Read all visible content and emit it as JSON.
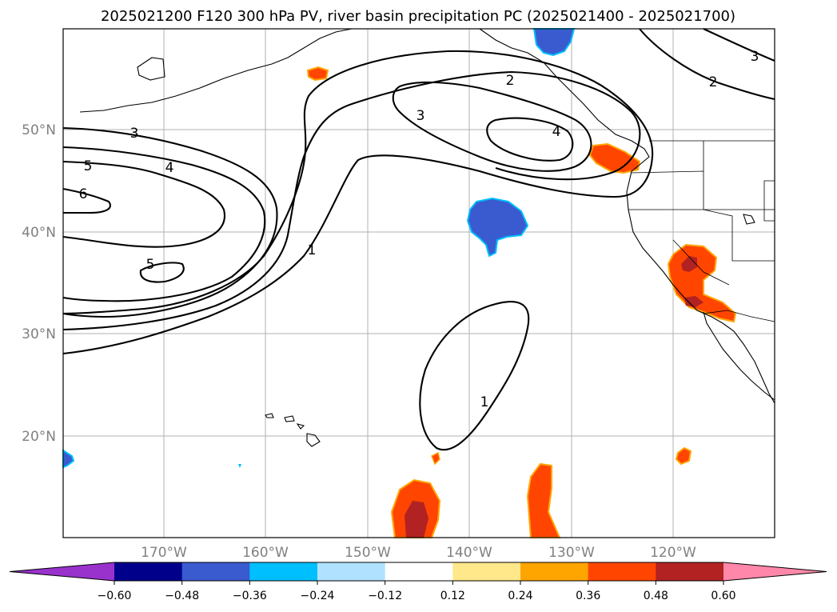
{
  "title": "2025021200 F120 300 hPa PV, river basin precipitation PC (2025021400 - 2025021700)",
  "map": {
    "lon_labels": [
      "170°W",
      "160°W",
      "150°W",
      "140°W",
      "130°W",
      "120°W"
    ],
    "lat_labels": [
      "50°N",
      "40°N",
      "30°N",
      "20°N"
    ],
    "contour_labels": [
      "2",
      "2",
      "3",
      "3",
      "3",
      "4",
      "4",
      "5",
      "5",
      "6",
      "1",
      "1"
    ]
  },
  "colorbar": {
    "ticks": [
      "−0.60",
      "−0.48",
      "−0.36",
      "−0.24",
      "−0.12",
      "0.12",
      "0.24",
      "0.36",
      "0.48",
      "0.60"
    ],
    "colors": [
      "#9932cc",
      "#00008b",
      "#3a5bd0",
      "#00bfff",
      "#b0e2ff",
      "#ffffff",
      "#ffe88a",
      "#ffa500",
      "#ff4500",
      "#b22222",
      "#ff88aa"
    ]
  }
}
